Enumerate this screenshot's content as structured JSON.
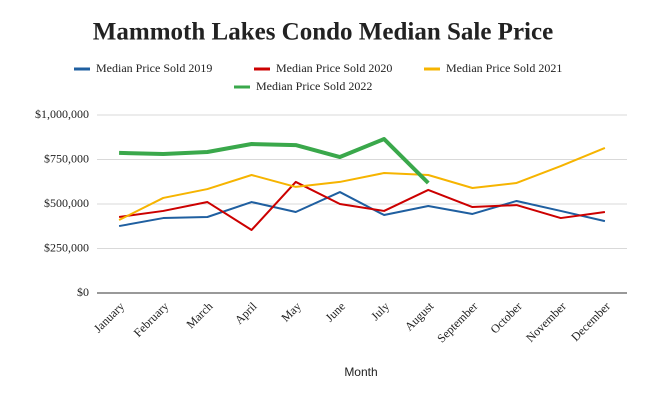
{
  "chart_data": {
    "type": "line",
    "title": "Mammoth Lakes Condo Median Sale Price",
    "x_label": "Month",
    "categories": [
      "January",
      "February",
      "March",
      "April",
      "May",
      "June",
      "July",
      "August",
      "September",
      "October",
      "November",
      "December"
    ],
    "series": [
      {
        "name": "Median Price Sold 2019",
        "color": "#1f5fa0",
        "values": [
          376000,
          421000,
          427000,
          511000,
          455000,
          567000,
          438000,
          489000,
          444000,
          517000,
          461000,
          404000
        ]
      },
      {
        "name": "Median Price Sold 2020",
        "color": "#cc0000",
        "values": [
          427000,
          461000,
          511000,
          354000,
          624000,
          500000,
          461000,
          579000,
          483000,
          494000,
          421000,
          455000
        ]
      },
      {
        "name": "Median Price Sold 2021",
        "color": "#f6b400",
        "values": [
          410000,
          534000,
          584000,
          663000,
          596000,
          624000,
          674000,
          663000,
          590000,
          618000,
          713000,
          815000
        ]
      },
      {
        "name": "Median Price Sold 2022",
        "color": "#3aa84b",
        "values": [
          787000,
          781000,
          792000,
          837000,
          831000,
          764000,
          865000,
          618000,
          null,
          null,
          null,
          null
        ]
      }
    ],
    "ylim": [
      0,
      1000000
    ],
    "yticks": [
      {
        "value": 0,
        "label": "$0"
      },
      {
        "value": 250000,
        "label": "$250,000"
      },
      {
        "value": 500000,
        "label": "$500,000"
      },
      {
        "value": 750000,
        "label": "$750,000"
      },
      {
        "value": 1000000,
        "label": "$1,000,000"
      }
    ],
    "grid": true,
    "legend": "top"
  }
}
